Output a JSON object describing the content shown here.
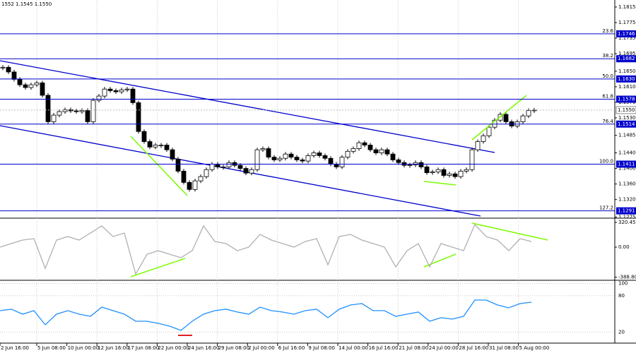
{
  "header": "1552 1.1545 1.1550",
  "price_axis": {
    "ylim": [
      1.1274,
      1.1833
    ],
    "ticks": [
      {
        "value": 1.1815,
        "label": "1.1815"
      },
      {
        "value": 1.1775,
        "label": "1.1775"
      },
      {
        "value": 1.1735,
        "label": "1.1735"
      },
      {
        "value": 1.1695,
        "label": "1.1695"
      },
      {
        "value": 1.165,
        "label": "1.1650"
      },
      {
        "value": 1.161,
        "label": "1.1610"
      },
      {
        "value": 1.157,
        "label": "1.1570"
      },
      {
        "value": 1.153,
        "label": "1.1530"
      },
      {
        "value": 1.1485,
        "label": "1.1485"
      },
      {
        "value": 1.144,
        "label": "1.1440"
      },
      {
        "value": 1.14,
        "label": "1.1400"
      },
      {
        "value": 1.136,
        "label": "1.1360"
      },
      {
        "value": 1.132,
        "label": "1.1320"
      },
      {
        "value": 1.1275,
        "label": "1.1275"
      }
    ]
  },
  "current_price": {
    "value": 1.155,
    "label": "1.1550"
  },
  "fib_levels": [
    {
      "ratio": "23.6",
      "price": {
        "value": 1.1746,
        "label": "1.1746"
      }
    },
    {
      "ratio": "38.2",
      "price": {
        "value": 1.1682,
        "label": "1.1682"
      }
    },
    {
      "ratio": "50.0",
      "price": {
        "value": 1.163,
        "label": "1.1630"
      }
    },
    {
      "ratio": "61.8",
      "price": {
        "value": 1.1578,
        "label": "1.1578"
      }
    },
    {
      "ratio": "76.4",
      "price": {
        "value": 1.1514,
        "label": "1.1514"
      }
    },
    {
      "ratio": "100.0",
      "price": {
        "value": 1.1411,
        "label": "1.1411"
      }
    },
    {
      "ratio": "127.2",
      "price": {
        "value": 1.1291,
        "label": "1.1291"
      }
    }
  ],
  "candles": {
    "close": [
      1.166,
      1.1648,
      1.1629,
      1.1615,
      1.1608,
      1.1615,
      1.162,
      1.1588,
      1.152,
      1.1537,
      1.1546,
      1.1551,
      1.1548,
      1.1546,
      1.1549,
      1.152,
      1.1575,
      1.1586,
      1.1604,
      1.16,
      1.1597,
      1.1602,
      1.1604,
      1.1569,
      1.1495,
      1.1469,
      1.1455,
      1.146,
      1.146,
      1.1448,
      1.1424,
      1.1393,
      1.1364,
      1.1346,
      1.1368,
      1.1379,
      1.1397,
      1.1411,
      1.1404,
      1.1404,
      1.1415,
      1.1408,
      1.14,
      1.1388,
      1.1397,
      1.1448,
      1.1451,
      1.1429,
      1.1422,
      1.1426,
      1.1437,
      1.1429,
      1.1422,
      1.1419,
      1.1433,
      1.144,
      1.1433,
      1.1426,
      1.1411,
      1.1404,
      1.1429,
      1.1444,
      1.1451,
      1.1466,
      1.146,
      1.1448,
      1.144,
      1.1448,
      1.1437,
      1.1422,
      1.1415,
      1.1408,
      1.1409,
      1.1415,
      1.1404,
      1.1389,
      1.1391,
      1.1397,
      1.1382,
      1.1386,
      1.1379,
      1.1393,
      1.1397,
      1.1448,
      1.1469,
      1.1484,
      1.1506,
      1.1524,
      1.1539,
      1.152,
      1.1509,
      1.152,
      1.1535,
      1.1549,
      1.155
    ]
  },
  "cci": {
    "ylim": [
      -420,
      357
    ],
    "ticks": [
      {
        "value": 320.4558,
        "label": "320.4558"
      },
      {
        "value": 0,
        "label": "0.00"
      },
      {
        "value": -388.8031,
        "label": "-388.803"
      }
    ],
    "values": [
      0,
      46,
      92,
      110,
      -275,
      92,
      137,
      92,
      183,
      275,
      137,
      183,
      -348,
      -92,
      -46,
      -92,
      -137,
      -46,
      275,
      73,
      46,
      -46,
      0,
      165,
      92,
      46,
      0,
      73,
      110,
      -229,
      137,
      165,
      92,
      46,
      0,
      -256,
      -46,
      46,
      -256,
      46,
      0,
      -46,
      293,
      137,
      92,
      -46,
      110,
      73
    ]
  },
  "rsi": {
    "ylim": [
      3,
      103
    ],
    "ticks": [
      100,
      80,
      20
    ],
    "values": [
      55.3,
      57.7,
      49.5,
      55.3,
      32.1,
      49.5,
      55.3,
      49.5,
      46.0,
      61.1,
      55.3,
      49.5,
      37.9,
      37.9,
      34.4,
      29.7,
      22.8,
      37.9,
      49.5,
      55.3,
      57.7,
      53.0,
      49.5,
      61.1,
      55.3,
      53.0,
      49.5,
      55.3,
      57.7,
      43.7,
      57.7,
      64.6,
      67.0,
      55.3,
      55.3,
      46.0,
      49.5,
      53.0,
      37.9,
      43.7,
      41.4,
      46.0,
      72.8,
      72.8,
      64.6,
      60.0,
      67.0,
      69.3
    ]
  },
  "time_axis": {
    "labels": [
      "2 Jun 16:00",
      "5 Jun 08:00",
      "10 Jun 00:00",
      "12 Jun 16:00",
      "17 Jun 08:00",
      "22 Jun 00:00",
      "24 Jun 16:00",
      "29 Jun 08:00",
      "2 Jul 00:00",
      "6 Jul 16:00",
      "9 Jul 08:00",
      "14 Jul 00:00",
      "16 Jul 16:00",
      "21 Jul 08:00",
      "24 Jul 00:00",
      "28 Jul 16:00",
      "31 Jul 08:00",
      "5 Aug 00:00"
    ]
  }
}
